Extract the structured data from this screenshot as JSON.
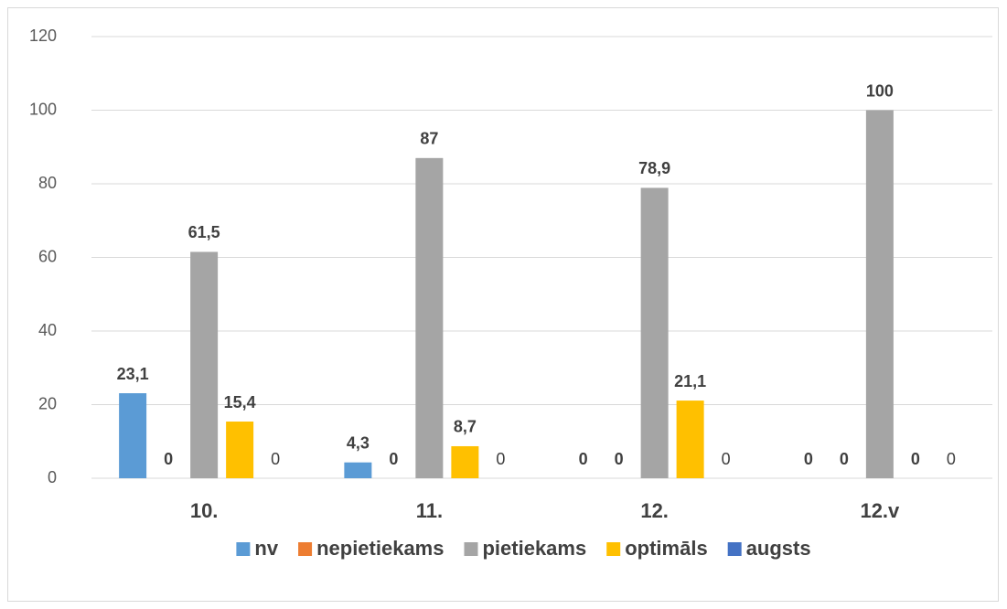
{
  "chart_data": {
    "type": "bar",
    "categories": [
      "10.",
      "11.",
      "12.",
      "12.v"
    ],
    "series": [
      {
        "name": "nv",
        "color": "#5b9bd5",
        "values": [
          23.1,
          4.3,
          0,
          0
        ],
        "value_labels": [
          "23,1",
          "4,3",
          "0",
          "0"
        ]
      },
      {
        "name": "nepietiekams",
        "color": "#ed7d31",
        "values": [
          0,
          0,
          0,
          0
        ],
        "value_labels": [
          "0",
          "0",
          "0",
          "0"
        ]
      },
      {
        "name": "pietiekams",
        "color": "#a5a5a5",
        "values": [
          61.5,
          87,
          78.9,
          100
        ],
        "value_labels": [
          "61,5",
          "87",
          "78,9",
          "100"
        ]
      },
      {
        "name": "optimāls",
        "color": "#ffc000",
        "values": [
          15.4,
          8.7,
          21.1,
          0
        ],
        "value_labels": [
          "15,4",
          "8,7",
          "21,1",
          "0"
        ]
      },
      {
        "name": "augsts",
        "color": "#4472c4",
        "values": [
          0,
          0,
          0,
          0
        ],
        "value_labels": [
          "0",
          "0",
          "0",
          "0"
        ]
      }
    ],
    "ylim": [
      0,
      120
    ],
    "yticks": [
      0,
      20,
      40,
      60,
      80,
      100,
      120
    ],
    "grid": true,
    "legend": "bottom"
  }
}
